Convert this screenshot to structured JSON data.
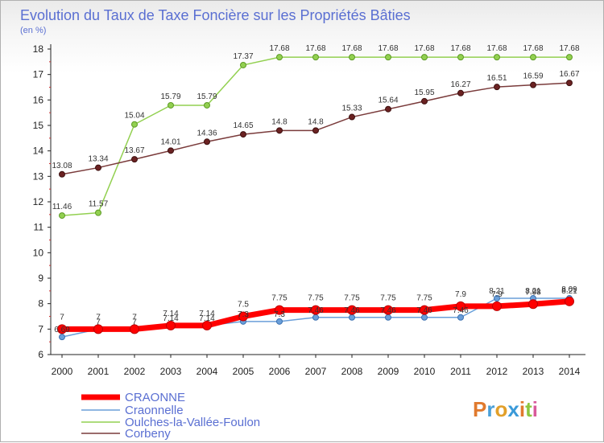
{
  "chart_data": {
    "type": "line",
    "title": "Evolution du Taux de Taxe Foncière sur les Propriétés Bâties",
    "subtitle": "(en %)",
    "xlabel": "",
    "ylabel": "",
    "ylim": [
      6,
      18
    ],
    "grid": false,
    "categories": [
      "2000",
      "2001",
      "2002",
      "2003",
      "2004",
      "2005",
      "2006",
      "2007",
      "2008",
      "2009",
      "2010",
      "2011",
      "2012",
      "2013",
      "2014"
    ],
    "series": [
      {
        "name": "CRAONNE",
        "color": "#ff0000",
        "values": [
          7,
          7,
          7,
          7.14,
          7.14,
          7.5,
          7.75,
          7.75,
          7.75,
          7.75,
          7.75,
          7.9,
          7.9,
          7.98,
          8.09
        ],
        "labels": [
          "7",
          "7",
          "7",
          "7.14",
          "7.14",
          "7.5",
          "7.75",
          "7.75",
          "7.75",
          "7.75",
          "7.75",
          "7.9",
          "7.9",
          "7.98",
          "8.09"
        ]
      },
      {
        "name": "Craonnelle",
        "color": "#6a9fd9",
        "values": [
          6.69,
          7,
          7,
          7.14,
          7.14,
          7.3,
          7.3,
          7.46,
          7.46,
          7.46,
          7.46,
          7.46,
          8.21,
          8.21,
          8.21
        ],
        "labels": [
          "6.69",
          "7",
          "7",
          "7.14",
          "7.14",
          "7.3",
          "7.3",
          "7.46",
          "7.46",
          "7.46",
          "7.46",
          "7.46",
          "8.21",
          "8.21",
          "8.21"
        ]
      },
      {
        "name": "Oulches-la-Vallée-Foulon",
        "color": "#92d050",
        "values": [
          11.46,
          11.57,
          15.04,
          15.79,
          15.79,
          17.37,
          17.68,
          17.68,
          17.68,
          17.68,
          17.68,
          17.68,
          17.68,
          17.68,
          17.68
        ],
        "labels": [
          "11.46",
          "11.57",
          "15.04",
          "15.79",
          "15.79",
          "17.37",
          "17.68",
          "17.68",
          "17.68",
          "17.68",
          "17.68",
          "17.68",
          "17.68",
          "17.68",
          "17.68"
        ]
      },
      {
        "name": "Corbeny",
        "color": "#7a3b3b",
        "values": [
          13.08,
          13.34,
          13.67,
          14.01,
          14.36,
          14.65,
          14.8,
          14.8,
          15.33,
          15.64,
          15.95,
          16.27,
          16.51,
          16.59,
          16.67
        ],
        "labels": [
          "13.08",
          "13.34",
          "13.67",
          "14.01",
          "14.36",
          "14.65",
          "14.8",
          "14.8",
          "15.33",
          "15.64",
          "15.95",
          "16.27",
          "16.51",
          "16.59",
          "16.67"
        ]
      }
    ]
  },
  "logo": {
    "text": "Proxiti"
  }
}
